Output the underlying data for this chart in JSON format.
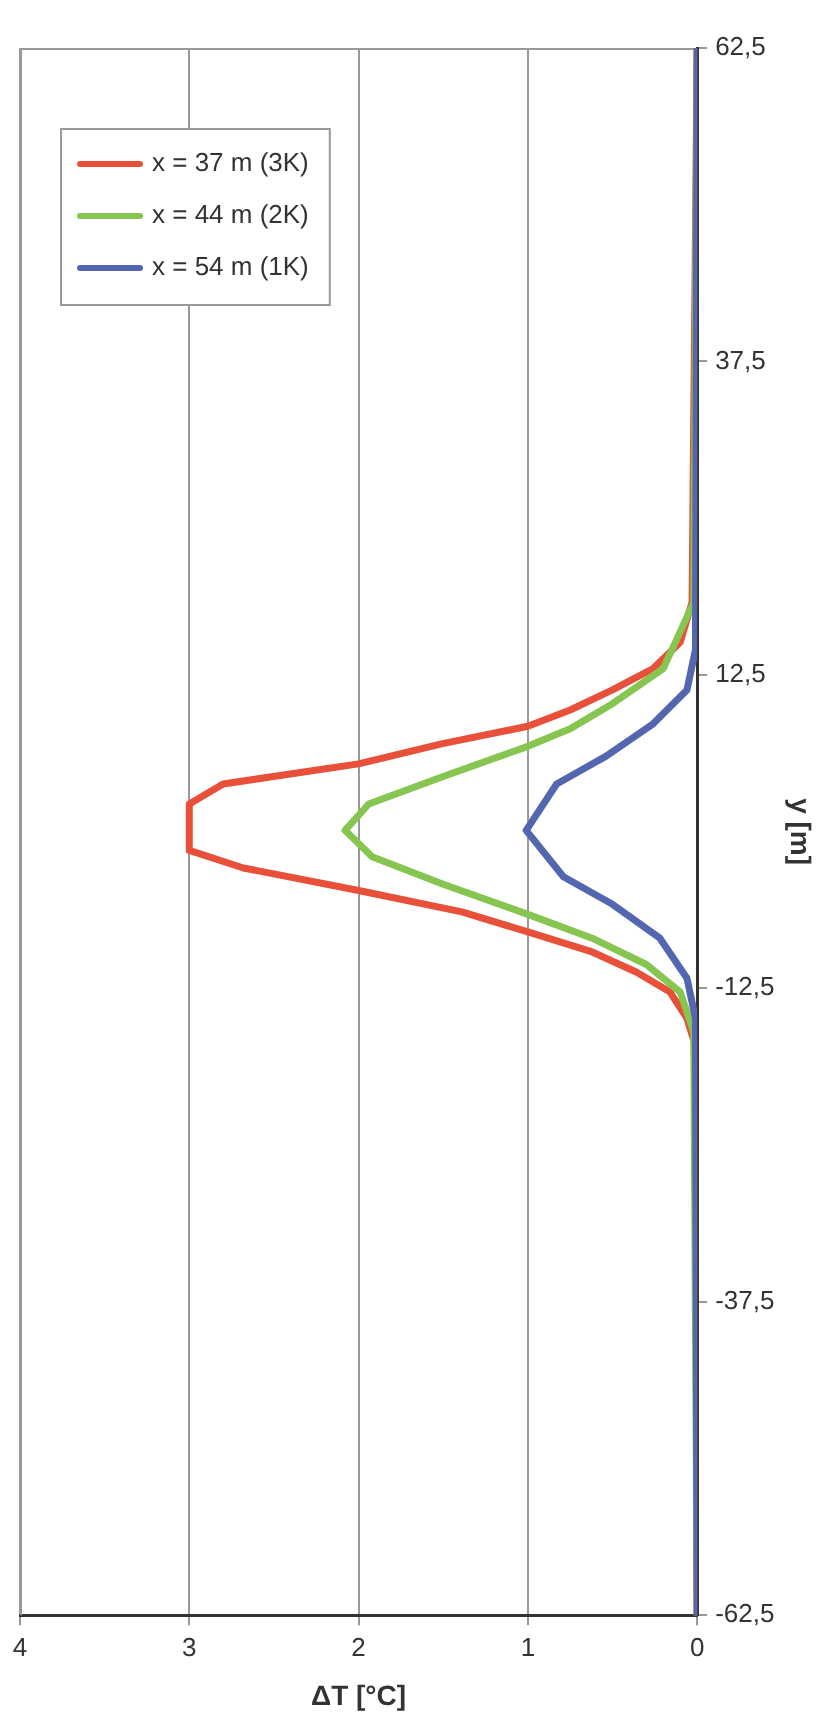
{
  "chart_data": {
    "type": "line",
    "xlabel": "ΔT [°C]",
    "ylabel": "y [m]",
    "xlim": [
      4,
      0
    ],
    "xticks": [
      0,
      1,
      2,
      3,
      4
    ],
    "ylim": [
      -62.5,
      62.5
    ],
    "yticks": [
      {
        "value": -62.5,
        "label": "-62,5"
      },
      {
        "value": -37.5,
        "label": "-37,5"
      },
      {
        "value": -12.5,
        "label": "-12,5"
      },
      {
        "value": 12.5,
        "label": "12,5"
      },
      {
        "value": 37.5,
        "label": "37,5"
      },
      {
        "value": 62.5,
        "label": "62,5"
      }
    ],
    "grid": "x",
    "legend": "top left",
    "series": [
      {
        "name": "x = 37 m (3K)",
        "color": "#e8503a",
        "values": [
          -62.5,
          -17.1,
          -14.9,
          -12.8,
          -11.2,
          -9.6,
          -8.0,
          -6.4,
          -4.7,
          -2.9,
          -1.5,
          2.2,
          3.8,
          5.4,
          7.0,
          8.4,
          9.7,
          11.3,
          13.0,
          15.1,
          18.3,
          62.5
        ],
        "x": [
          0,
          0.01,
          0.06,
          0.16,
          0.36,
          0.62,
          1.0,
          1.39,
          2.0,
          2.68,
          3.0,
          3.0,
          2.8,
          2.0,
          1.51,
          1.0,
          0.75,
          0.5,
          0.26,
          0.1,
          0.03,
          0
        ]
      },
      {
        "name": "x = 44 m (2K)",
        "color": "#86c54f",
        "values": [
          -62.5,
          -16.0,
          -12.8,
          -10.6,
          -8.5,
          -6.6,
          -4.2,
          -2.0,
          0.1,
          2.2,
          4.4,
          6.8,
          8.2,
          10.2,
          13.0,
          18.3,
          62.5
        ],
        "x": [
          0,
          0.02,
          0.1,
          0.3,
          0.62,
          1.0,
          1.5,
          1.92,
          2.08,
          1.94,
          1.5,
          1.0,
          0.75,
          0.5,
          0.2,
          0.02,
          0
        ]
      },
      {
        "name": "x = 54 m (1K)",
        "color": "#5566b0",
        "values": [
          -62.5,
          -14.9,
          -11.7,
          -8.5,
          -5.8,
          -3.6,
          0.1,
          3.8,
          6.0,
          8.6,
          11.3,
          14.5,
          62.5
        ],
        "x": [
          0,
          0.01,
          0.06,
          0.22,
          0.5,
          0.79,
          1.01,
          0.83,
          0.54,
          0.26,
          0.06,
          0.01,
          0
        ]
      }
    ]
  }
}
